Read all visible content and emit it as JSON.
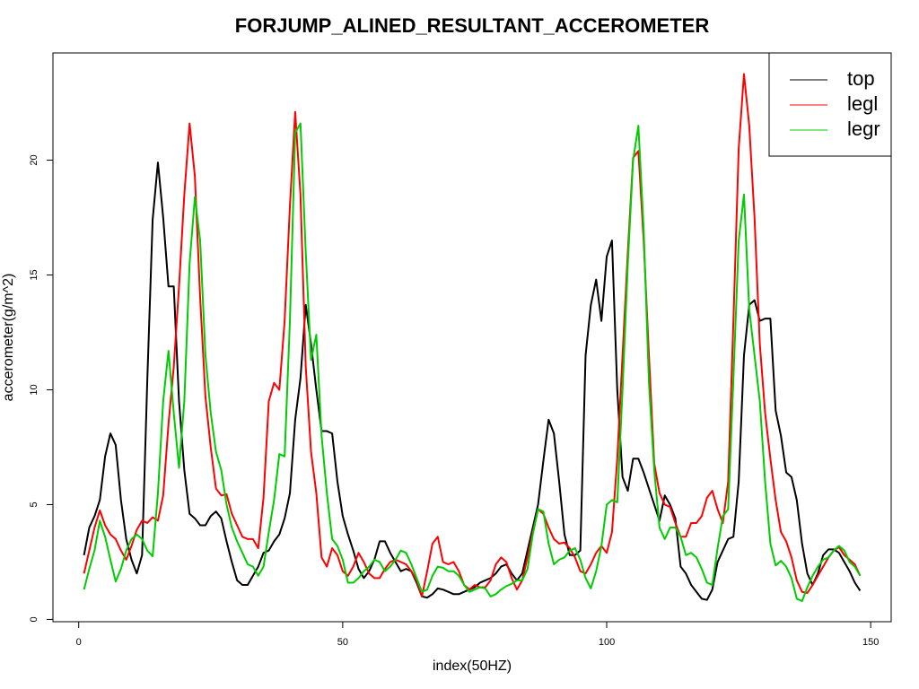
{
  "chart_data": {
    "type": "line",
    "title": "FORJUMP_ALINED_RESULTANT_ACCEROMETER",
    "x_label": "index(50HZ)",
    "y_label": "accerometer(g/m^2)",
    "x": [
      1,
      2,
      3,
      4,
      5,
      6,
      7,
      8,
      9,
      10,
      11,
      12,
      13,
      14,
      15,
      16,
      17,
      18,
      19,
      20,
      21,
      22,
      23,
      24,
      25,
      26,
      27,
      28,
      29,
      30,
      31,
      32,
      33,
      34,
      35,
      36,
      37,
      38,
      39,
      40,
      41,
      42,
      43,
      44,
      45,
      46,
      47,
      48,
      49,
      50,
      51,
      52,
      53,
      54,
      55,
      56,
      57,
      58,
      59,
      60,
      61,
      62,
      63,
      64,
      65,
      66,
      67,
      68,
      69,
      70,
      71,
      72,
      73,
      74,
      75,
      76,
      77,
      78,
      79,
      80,
      81,
      82,
      83,
      84,
      85,
      86,
      87,
      88,
      89,
      90,
      91,
      92,
      93,
      94,
      95,
      96,
      97,
      98,
      99,
      100,
      101,
      102,
      103,
      104,
      105,
      106,
      107,
      108,
      109,
      110,
      111,
      112,
      113,
      114,
      115,
      116,
      117,
      118,
      119,
      120,
      121,
      122,
      123,
      124,
      125,
      126,
      127,
      128,
      129,
      130,
      131,
      132,
      133,
      134,
      135,
      136,
      137,
      138,
      139,
      140,
      141,
      142,
      143,
      144,
      145,
      146,
      147,
      148
    ],
    "series": [
      {
        "name": "top",
        "color": "#000000",
        "values": [
          2.8,
          4.0,
          4.5,
          5.2,
          7.1,
          8.1,
          7.6,
          5.2,
          3.5,
          2.6,
          2.0,
          2.8,
          10.5,
          17.4,
          19.9,
          17.5,
          14.5,
          14.5,
          9.5,
          6.5,
          4.6,
          4.4,
          4.1,
          4.1,
          4.5,
          4.7,
          4.4,
          3.4,
          2.5,
          1.7,
          1.5,
          1.5,
          1.9,
          2.3,
          2.9,
          3.0,
          3.4,
          3.7,
          4.4,
          5.5,
          8.7,
          10.5,
          13.7,
          12.0,
          10.0,
          8.2,
          8.2,
          8.1,
          6.0,
          4.5,
          3.7,
          3.0,
          2.2,
          1.8,
          2.1,
          2.6,
          3.4,
          3.4,
          2.9,
          2.5,
          2.1,
          2.2,
          2.1,
          1.6,
          1.0,
          0.95,
          1.1,
          1.35,
          1.3,
          1.2,
          1.1,
          1.1,
          1.2,
          1.3,
          1.4,
          1.6,
          1.7,
          1.8,
          2.0,
          2.3,
          2.4,
          2.0,
          1.7,
          2.0,
          3.0,
          4.0,
          5.0,
          6.9,
          8.7,
          8.1,
          6.0,
          3.7,
          2.8,
          2.8,
          3.0,
          11.5,
          13.7,
          14.8,
          13.0,
          15.8,
          16.5,
          10.0,
          6.2,
          5.6,
          7.0,
          7.0,
          6.4,
          5.7,
          5.0,
          4.3,
          5.4,
          5.0,
          4.4,
          2.3,
          2.0,
          1.5,
          1.2,
          0.9,
          0.85,
          1.3,
          2.5,
          3.0,
          3.5,
          3.6,
          6.0,
          11.5,
          13.7,
          13.9,
          13.0,
          13.1,
          13.1,
          9.1,
          8.0,
          6.4,
          6.2,
          5.2,
          3.3,
          2.0,
          1.5,
          2.0,
          2.8,
          3.05,
          3.05,
          2.9,
          2.5,
          2.1,
          1.6,
          1.25
        ]
      },
      {
        "name": "legl",
        "color": "#ff0000",
        "values": [
          2.0,
          3.0,
          4.0,
          4.75,
          4.1,
          3.7,
          3.5,
          3.0,
          2.6,
          3.2,
          3.9,
          4.3,
          4.2,
          4.45,
          4.3,
          5.4,
          8.5,
          11.0,
          14.5,
          18.5,
          21.6,
          19.3,
          14.0,
          9.7,
          7.5,
          5.7,
          5.4,
          5.45,
          4.6,
          4.1,
          3.6,
          3.5,
          3.5,
          3.1,
          5.3,
          9.5,
          10.3,
          10.0,
          13.0,
          18.0,
          22.1,
          18.5,
          11.0,
          7.3,
          5.5,
          2.7,
          2.3,
          3.1,
          2.8,
          2.1,
          1.9,
          2.3,
          2.9,
          2.5,
          2.0,
          1.8,
          1.8,
          2.2,
          2.5,
          2.6,
          2.5,
          2.4,
          2.1,
          1.7,
          1.0,
          2.1,
          3.3,
          3.6,
          2.5,
          2.4,
          2.5,
          2.1,
          1.5,
          1.3,
          1.5,
          1.4,
          1.4,
          1.7,
          2.4,
          2.7,
          2.5,
          1.8,
          1.3,
          1.7,
          2.7,
          3.8,
          4.8,
          4.6,
          4.0,
          3.5,
          3.3,
          3.35,
          3.1,
          2.7,
          2.1,
          2.0,
          2.4,
          2.9,
          3.2,
          2.9,
          3.8,
          7.0,
          11.5,
          16.0,
          20.1,
          20.4,
          16.5,
          11.5,
          6.8,
          5.5,
          5.0,
          4.9,
          4.2,
          3.6,
          3.6,
          4.2,
          4.2,
          4.5,
          5.3,
          5.6,
          4.8,
          4.2,
          6.0,
          13.0,
          20.5,
          23.75,
          21.5,
          17.5,
          12.0,
          9.0,
          7.0,
          5.2,
          3.8,
          3.4,
          2.7,
          1.7,
          1.2,
          1.15,
          1.5,
          1.9,
          2.3,
          2.7,
          3.0,
          3.15,
          2.8,
          2.6,
          2.4,
          1.9
        ]
      },
      {
        "name": "legr",
        "color": "#00cd00",
        "values": [
          1.3,
          2.2,
          3.0,
          4.3,
          3.6,
          2.6,
          1.65,
          2.2,
          3.0,
          3.5,
          3.7,
          3.5,
          3.0,
          2.75,
          5.5,
          9.5,
          11.7,
          9.0,
          6.6,
          9.5,
          15.5,
          18.4,
          16.5,
          11.5,
          9.0,
          7.3,
          6.5,
          5.0,
          4.0,
          3.4,
          2.9,
          2.4,
          2.3,
          1.9,
          2.3,
          3.8,
          5.2,
          7.2,
          7.1,
          13.0,
          21.2,
          21.6,
          16.0,
          11.3,
          12.4,
          8.0,
          5.5,
          3.5,
          3.2,
          2.6,
          1.6,
          1.6,
          1.8,
          2.1,
          2.3,
          2.6,
          2.5,
          2.1,
          2.3,
          2.6,
          3.0,
          2.9,
          2.4,
          1.8,
          1.2,
          1.3,
          1.9,
          2.3,
          2.25,
          2.1,
          2.1,
          1.9,
          1.5,
          1.2,
          1.3,
          1.4,
          1.35,
          1.0,
          1.1,
          1.3,
          1.45,
          1.55,
          1.7,
          1.7,
          2.2,
          3.7,
          4.8,
          4.7,
          3.3,
          2.4,
          2.6,
          2.7,
          3.0,
          3.1,
          2.6,
          1.8,
          1.35,
          2.1,
          3.2,
          5.0,
          5.2,
          5.1,
          10.0,
          15.5,
          20.0,
          21.5,
          17.0,
          10.3,
          6.5,
          4.0,
          3.5,
          4.0,
          4.0,
          3.6,
          2.8,
          2.9,
          2.7,
          2.2,
          1.6,
          1.5,
          3.1,
          4.5,
          4.8,
          10.5,
          16.5,
          18.5,
          13.5,
          11.5,
          9.5,
          6.0,
          3.3,
          2.35,
          2.55,
          2.3,
          1.8,
          0.9,
          0.8,
          1.4,
          1.9,
          2.3,
          2.6,
          2.7,
          3.0,
          3.2,
          3.0,
          2.5,
          2.3,
          1.9
        ]
      }
    ],
    "xlim": [
      -4.88,
      153.88
    ],
    "ylim": [
      -0.1,
      24.67
    ],
    "xticks": [
      0,
      50,
      100,
      150
    ],
    "yticks": [
      0,
      5,
      10,
      15,
      20
    ],
    "legend": "topright",
    "grid": false
  }
}
